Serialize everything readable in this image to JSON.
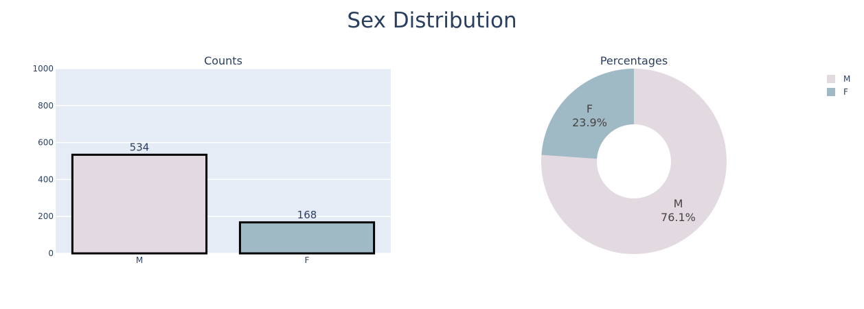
{
  "title": "Sex Distribution",
  "chart_data": [
    {
      "type": "bar",
      "title": "Counts",
      "categories": [
        "M",
        "F"
      ],
      "values": [
        534,
        168
      ],
      "colors": [
        "#e3d9e1",
        "#9fb9c5"
      ],
      "ylim": [
        0,
        1000
      ],
      "yticks": [
        0,
        200,
        400,
        600,
        800,
        1000
      ],
      "grid": true
    },
    {
      "type": "pie",
      "title": "Percentages",
      "labels": [
        "M",
        "F"
      ],
      "values": [
        76.1,
        23.9
      ],
      "percent_labels": [
        "76.1%",
        "23.9%"
      ],
      "colors": [
        "#e3d9e1",
        "#9fb9c5"
      ],
      "hole": true,
      "legend": "top-right"
    }
  ]
}
